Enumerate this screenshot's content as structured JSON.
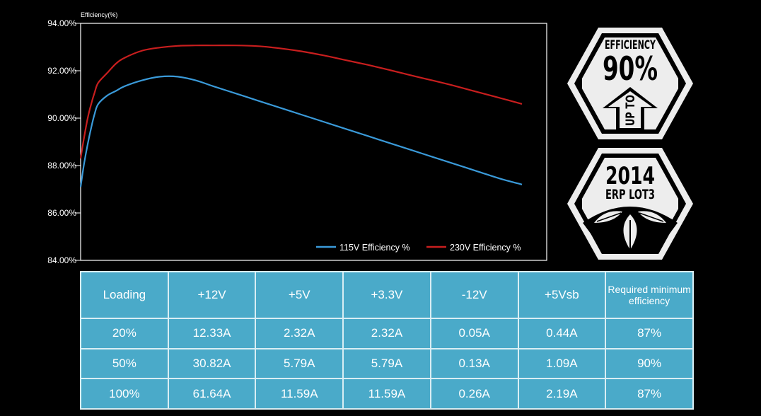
{
  "chart_data": {
    "type": "line",
    "ylabel": "Efficiency(%)",
    "ylim": [
      84,
      94
    ],
    "yticks": [
      "94.00%",
      "92.00%",
      "90.00%",
      "88.00%",
      "86.00%",
      "84.00%"
    ],
    "ytick_values": [
      94,
      92,
      90,
      88,
      86,
      84
    ],
    "x_unit": "load %",
    "xlim": [
      0,
      100
    ],
    "grid": false,
    "legend_position": "bottom-right",
    "series": [
      {
        "name": "115V Efficiency %",
        "color": "#3a9ad9",
        "x": [
          0,
          0.8,
          1.6,
          2.4,
          3.2,
          4,
          6,
          8,
          10,
          14,
          18,
          22,
          26,
          30,
          35,
          40,
          45,
          50,
          55,
          60,
          65,
          70,
          75,
          80,
          85,
          90,
          95,
          100
        ],
        "y": [
          87.1,
          88.1,
          88.9,
          89.6,
          90.2,
          90.6,
          90.95,
          91.15,
          91.35,
          91.6,
          91.75,
          91.75,
          91.6,
          91.35,
          91.05,
          90.75,
          90.45,
          90.15,
          89.85,
          89.55,
          89.25,
          88.95,
          88.65,
          88.35,
          88.05,
          87.75,
          87.45,
          87.2
        ]
      },
      {
        "name": "230V Efficiency %",
        "color": "#c81e1e",
        "x": [
          0,
          0.8,
          1.6,
          2.4,
          3.2,
          4,
          6,
          8,
          10,
          14,
          18,
          22,
          26,
          30,
          35,
          40,
          45,
          50,
          55,
          60,
          65,
          70,
          75,
          80,
          85,
          90,
          95,
          100
        ],
        "y": [
          88.3,
          89.2,
          90.0,
          90.6,
          91.1,
          91.5,
          91.9,
          92.3,
          92.55,
          92.85,
          92.98,
          93.05,
          93.07,
          93.07,
          93.07,
          93.04,
          92.95,
          92.82,
          92.65,
          92.45,
          92.25,
          92.03,
          91.8,
          91.58,
          91.35,
          91.1,
          90.85,
          90.6
        ]
      }
    ]
  },
  "badges": {
    "efficiency": {
      "line1": "EFFICIENCY",
      "line2": "90%",
      "arrow_text": "UP TO"
    },
    "erp": {
      "line1": "2014",
      "line2": "ERP LOT3"
    }
  },
  "table": {
    "headers": [
      "Loading",
      "+12V",
      "+5V",
      "+3.3V",
      "-12V",
      "+5Vsb",
      "Required minimum efficiency"
    ],
    "rows": [
      [
        "20%",
        "12.33A",
        "2.32A",
        "2.32A",
        "0.05A",
        "0.44A",
        "87%"
      ],
      [
        "50%",
        "30.82A",
        "5.79A",
        "5.79A",
        "0.13A",
        "1.09A",
        "90%"
      ],
      [
        "100%",
        "61.64A",
        "11.59A",
        "11.59A",
        "0.26A",
        "2.19A",
        "87%"
      ]
    ]
  }
}
